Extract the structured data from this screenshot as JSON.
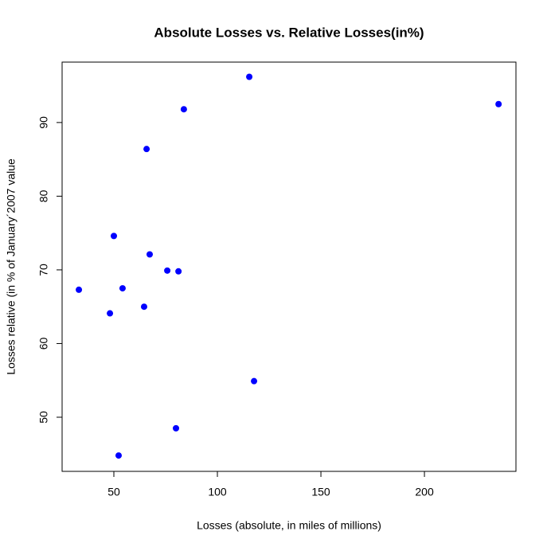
{
  "chart_data": {
    "type": "scatter",
    "title": "Absolute Losses vs. Relative Losses(in%)",
    "x_label": "Losses (absolute, in miles of millions)",
    "y_label": "Losses relative (in % of January´2007 value",
    "color": "#0000ff",
    "x": [
      33.1,
      48.1,
      50.0,
      52.3,
      54.2,
      64.6,
      65.8,
      67.3,
      75.8,
      81.2,
      80.0,
      83.8,
      115.4,
      117.7,
      235.8
    ],
    "values": [
      67.3,
      64.1,
      74.6,
      44.8,
      67.5,
      65.0,
      86.4,
      72.1,
      69.9,
      69.8,
      48.5,
      91.8,
      96.2,
      54.9,
      92.5
    ],
    "xlim": [
      25,
      244.2
    ],
    "xticks": [
      50,
      100,
      150,
      200
    ],
    "ylim": [
      42.65,
      98.2
    ],
    "yticks": [
      50,
      60,
      70,
      80,
      90
    ]
  }
}
